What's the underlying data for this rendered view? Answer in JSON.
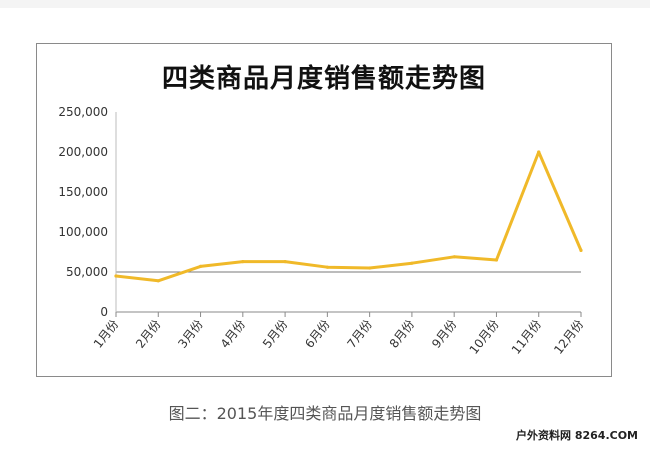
{
  "chart_data": {
    "type": "line",
    "title": "四类商品月度销售额走势图",
    "categories": [
      "1月份",
      "2月份",
      "3月份",
      "4月份",
      "5月份",
      "6月份",
      "7月份",
      "8月份",
      "9月份",
      "10月份",
      "11月份",
      "12月份"
    ],
    "series": [
      {
        "values": [
          45000,
          39000,
          57000,
          63000,
          63000,
          56000,
          55000,
          61000,
          69000,
          65000,
          200000,
          77000
        ],
        "color": "#f0b929"
      }
    ],
    "yticks": [
      "0",
      "50,000",
      "100,000",
      "150,000",
      "200,000",
      "250,000"
    ],
    "ylim": [
      0,
      250000
    ],
    "grid": "horizontal at 50,000 only",
    "legend": "none"
  },
  "caption": "图二：2015年度四类商品月度销售额走势图",
  "watermark": "户外资料网 8264.COM"
}
